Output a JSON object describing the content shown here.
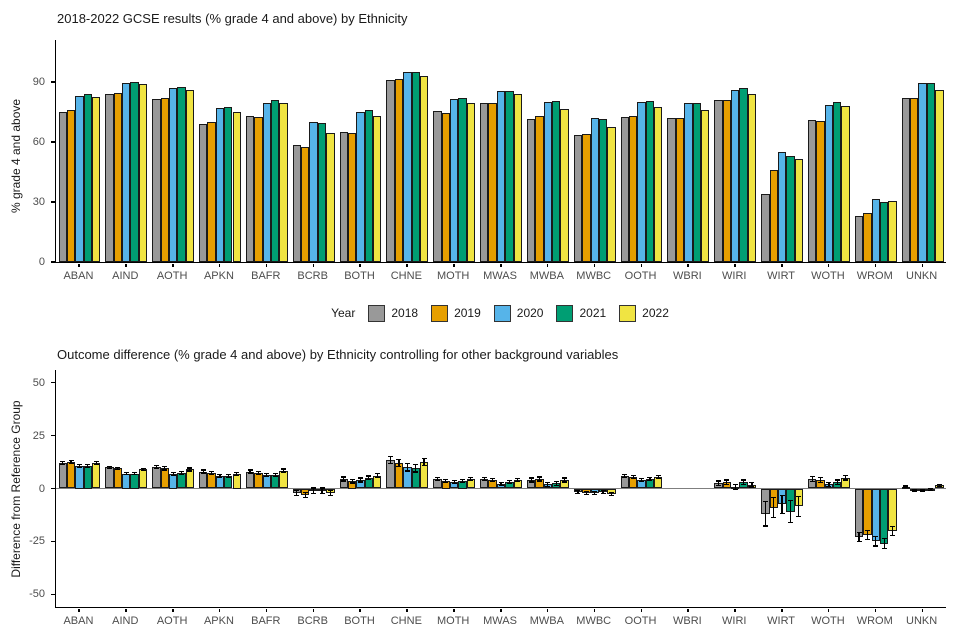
{
  "figure": {
    "background": "#ffffff",
    "axis_text_color": "#4d4d4d",
    "bar_border_color": "#1a1a1a",
    "legend": {
      "title": "Year",
      "entries": [
        {
          "label": "2018",
          "color": "#999999"
        },
        {
          "label": "2019",
          "color": "#E69F00"
        },
        {
          "label": "2020",
          "color": "#56B4E9"
        },
        {
          "label": "2021",
          "color": "#009E73"
        },
        {
          "label": "2022",
          "color": "#F0E442"
        }
      ]
    }
  },
  "chart_data": [
    {
      "type": "bar",
      "title": "2018-2022 GCSE results (% grade 4 and above) by Ethnicity",
      "xlabel": "",
      "ylabel": "% grade 4 and above",
      "yticks": [
        0,
        30,
        60,
        90
      ],
      "ylim": [
        0,
        111
      ],
      "grid": false,
      "legend_position": "bottom-center",
      "categories": [
        "ABAN",
        "AIND",
        "AOTH",
        "APKN",
        "BAFR",
        "BCRB",
        "BOTH",
        "CHNE",
        "MOTH",
        "MWAS",
        "MWBA",
        "MWBC",
        "OOTH",
        "WBRI",
        "WIRI",
        "WIRT",
        "WOTH",
        "WROM",
        "UNKN"
      ],
      "series": [
        {
          "name": "2018",
          "color": "#999999",
          "values": [
            75,
            84,
            81.5,
            69,
            73,
            58.5,
            65,
            91,
            75.5,
            79.5,
            71.5,
            63.5,
            72.5,
            72,
            81,
            34,
            71,
            23,
            82
          ]
        },
        {
          "name": "2019",
          "color": "#E69F00",
          "values": [
            76,
            84.5,
            82,
            70,
            72.5,
            57.5,
            64.5,
            91.5,
            74.5,
            79.5,
            73,
            64,
            73,
            72,
            81,
            46,
            70.5,
            24.5,
            82
          ]
        },
        {
          "name": "2020",
          "color": "#56B4E9",
          "values": [
            83,
            89.5,
            87,
            77,
            79.5,
            70,
            75,
            95,
            81.5,
            85.5,
            80,
            72,
            80,
            79.5,
            86,
            55,
            78.5,
            31.5,
            89.5
          ]
        },
        {
          "name": "2021",
          "color": "#009E73",
          "values": [
            84,
            90,
            87.5,
            77.5,
            81,
            69.5,
            76,
            95,
            82,
            85.5,
            80.5,
            71.5,
            80.5,
            79.5,
            87,
            53,
            80,
            30,
            89.5
          ]
        },
        {
          "name": "2022",
          "color": "#F0E442",
          "values": [
            82.5,
            89,
            86,
            75,
            79.5,
            64.5,
            73,
            93,
            79.5,
            84,
            76.5,
            67.5,
            77.5,
            76,
            84,
            51.5,
            78,
            30.5,
            86
          ]
        }
      ]
    },
    {
      "type": "bar",
      "title": "Outcome difference (% grade 4 and above) by Ethnicity controlling for other background variables",
      "xlabel": "",
      "ylabel": "Difference from Reference Group",
      "yticks": [
        50,
        25,
        0,
        -25,
        -50
      ],
      "ylim": [
        -56,
        56
      ],
      "grid": false,
      "zero_line": true,
      "reference_category": "WBRI",
      "error_bars": true,
      "categories": [
        "ABAN",
        "AIND",
        "AOTH",
        "APKN",
        "BAFR",
        "BCRB",
        "BOTH",
        "CHNE",
        "MOTH",
        "MWAS",
        "MWBA",
        "MWBC",
        "OOTH",
        "WBRI",
        "WIRI",
        "WIRT",
        "WOTH",
        "WROM",
        "UNKN"
      ],
      "series": [
        {
          "name": "2018",
          "color": "#999999",
          "values": [
            12,
            10,
            10,
            8,
            8,
            -2,
            4.5,
            13.5,
            4.5,
            4.5,
            4,
            -1.5,
            6,
            0,
            2.5,
            -12,
            4.5,
            -23,
            0.8
          ],
          "errors": [
            1,
            0.7,
            1,
            1,
            1,
            1.5,
            1.2,
            2,
            1,
            1,
            1.2,
            1,
            1,
            0,
            1.3,
            6,
            1.3,
            2.5,
            0.7
          ]
        },
        {
          "name": "2019",
          "color": "#E69F00",
          "values": [
            12.5,
            9.5,
            9.5,
            7.5,
            7.5,
            -3,
            3.5,
            12,
            3.5,
            4,
            4.5,
            -2,
            5.5,
            0,
            3,
            -9,
            4,
            -22,
            -0.8
          ],
          "errors": [
            1,
            0.7,
            1,
            1,
            1,
            1.5,
            1.2,
            2,
            1,
            1,
            1.2,
            1,
            1,
            0,
            1.3,
            5,
            1.3,
            2.5,
            0.7
          ]
        },
        {
          "name": "2020",
          "color": "#56B4E9",
          "values": [
            10.5,
            7,
            7,
            6,
            6.5,
            -1,
            4,
            10,
            3,
            2,
            2,
            -2,
            4,
            0,
            0.7,
            -7.5,
            2,
            -25,
            -0.8
          ],
          "errors": [
            1,
            0.7,
            1,
            1,
            1,
            1.5,
            1.2,
            2,
            1,
            1,
            1.2,
            1,
            1,
            0,
            1.3,
            4.5,
            1.3,
            2.5,
            0.7
          ]
        },
        {
          "name": "2021",
          "color": "#009E73",
          "values": [
            10.5,
            7,
            7.5,
            6,
            6.5,
            -1,
            5,
            9.5,
            3.5,
            3,
            2.5,
            -1.5,
            4.5,
            0,
            3,
            -11,
            3,
            -26,
            -0.5
          ],
          "errors": [
            1,
            0.7,
            1,
            1,
            1,
            1.5,
            1.2,
            2,
            1,
            1,
            1.2,
            1,
            1,
            0,
            1.3,
            5.5,
            1.3,
            2.5,
            0.7
          ]
        },
        {
          "name": "2022",
          "color": "#F0E442",
          "values": [
            12,
            9,
            9,
            7,
            8.5,
            -2,
            6,
            12.5,
            4.5,
            4,
            4,
            -2.5,
            5.5,
            0,
            1.7,
            -8.5,
            5,
            -20,
            1.5
          ],
          "errors": [
            1,
            0.7,
            1,
            1,
            1,
            1.5,
            1.2,
            2,
            1,
            1,
            1.2,
            1,
            1,
            0,
            1.3,
            5,
            1.3,
            2.5,
            0.7
          ]
        }
      ]
    }
  ]
}
